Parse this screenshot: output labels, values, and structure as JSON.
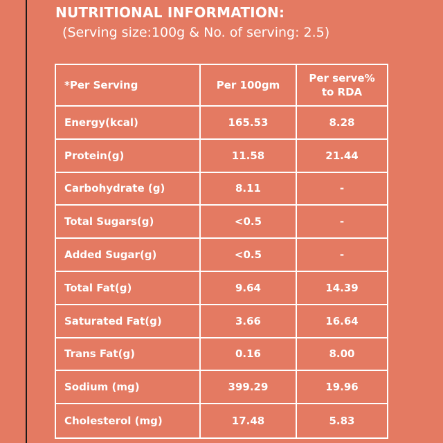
{
  "heading": "NUTRITIONAL INFORMATION:",
  "subheading": " (Serving size:100g & No. of serving: 2.5)",
  "table": {
    "headers": {
      "col1": "*Per Serving",
      "col2": "Per 100gm",
      "col3_line1": "Per serve%",
      "col3_line2": "to RDA"
    },
    "rows": [
      {
        "label": "Energy(kcal)",
        "per100": "165.53",
        "rda": "8.28"
      },
      {
        "label": "Protein(g)",
        "per100": "11.58",
        "rda": "21.44"
      },
      {
        "label": "Carbohydrate (g)",
        "per100": "8.11",
        "rda": "-"
      },
      {
        "label": "Total Sugars(g)",
        "per100": "<0.5",
        "rda": "-"
      },
      {
        "label": "Added Sugar(g)",
        "per100": "<0.5",
        "rda": "-"
      },
      {
        "label": "Total Fat(g)",
        "per100": "9.64",
        "rda": "14.39"
      },
      {
        "label": "Saturated Fat(g)",
        "per100": "3.66",
        "rda": "16.64"
      },
      {
        "label": "Trans Fat(g)",
        "per100": "0.16",
        "rda": "8.00"
      },
      {
        "label": "Sodium (mg)",
        "per100": "399.29",
        "rda": "19.96"
      },
      {
        "label": "Cholesterol (mg)",
        "per100": "17.48",
        "rda": "5.83"
      }
    ]
  }
}
